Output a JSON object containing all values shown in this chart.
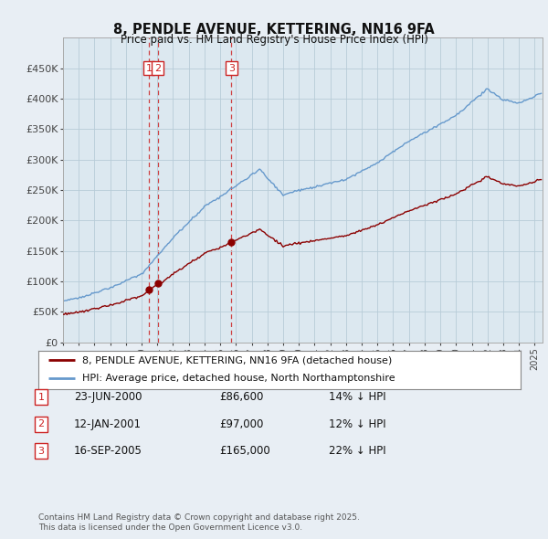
{
  "title": "8, PENDLE AVENUE, KETTERING, NN16 9FA",
  "subtitle": "Price paid vs. HM Land Registry's House Price Index (HPI)",
  "ylim": [
    0,
    500000
  ],
  "yticks": [
    0,
    50000,
    100000,
    150000,
    200000,
    250000,
    300000,
    350000,
    400000,
    450000
  ],
  "ytick_labels": [
    "£0",
    "£50K",
    "£100K",
    "£150K",
    "£200K",
    "£250K",
    "£300K",
    "£350K",
    "£400K",
    "£450K"
  ],
  "bg_color": "#e8eef4",
  "plot_bg_color": "#dce8f0",
  "grid_color": "#b8ccd8",
  "red_line_color": "#8B0000",
  "blue_line_color": "#6699cc",
  "sale_marker_color": "#8B0000",
  "vline_color": "#cc2222",
  "annotation_box_color": "#cc2222",
  "sales": [
    {
      "label": 1,
      "date_num": 2000.47,
      "price": 86600
    },
    {
      "label": 2,
      "date_num": 2001.03,
      "price": 97000
    },
    {
      "label": 3,
      "date_num": 2005.71,
      "price": 165000
    }
  ],
  "legend_entries": [
    "8, PENDLE AVENUE, KETTERING, NN16 9FA (detached house)",
    "HPI: Average price, detached house, North Northamptonshire"
  ],
  "table_rows": [
    {
      "num": 1,
      "date": "23-JUN-2000",
      "price": "£86,600",
      "hpi_note": "14% ↓ HPI"
    },
    {
      "num": 2,
      "date": "12-JAN-2001",
      "price": "£97,000",
      "hpi_note": "12% ↓ HPI"
    },
    {
      "num": 3,
      "date": "16-SEP-2005",
      "price": "£165,000",
      "hpi_note": "22% ↓ HPI"
    }
  ],
  "footer": "Contains HM Land Registry data © Crown copyright and database right 2025.\nThis data is licensed under the Open Government Licence v3.0."
}
